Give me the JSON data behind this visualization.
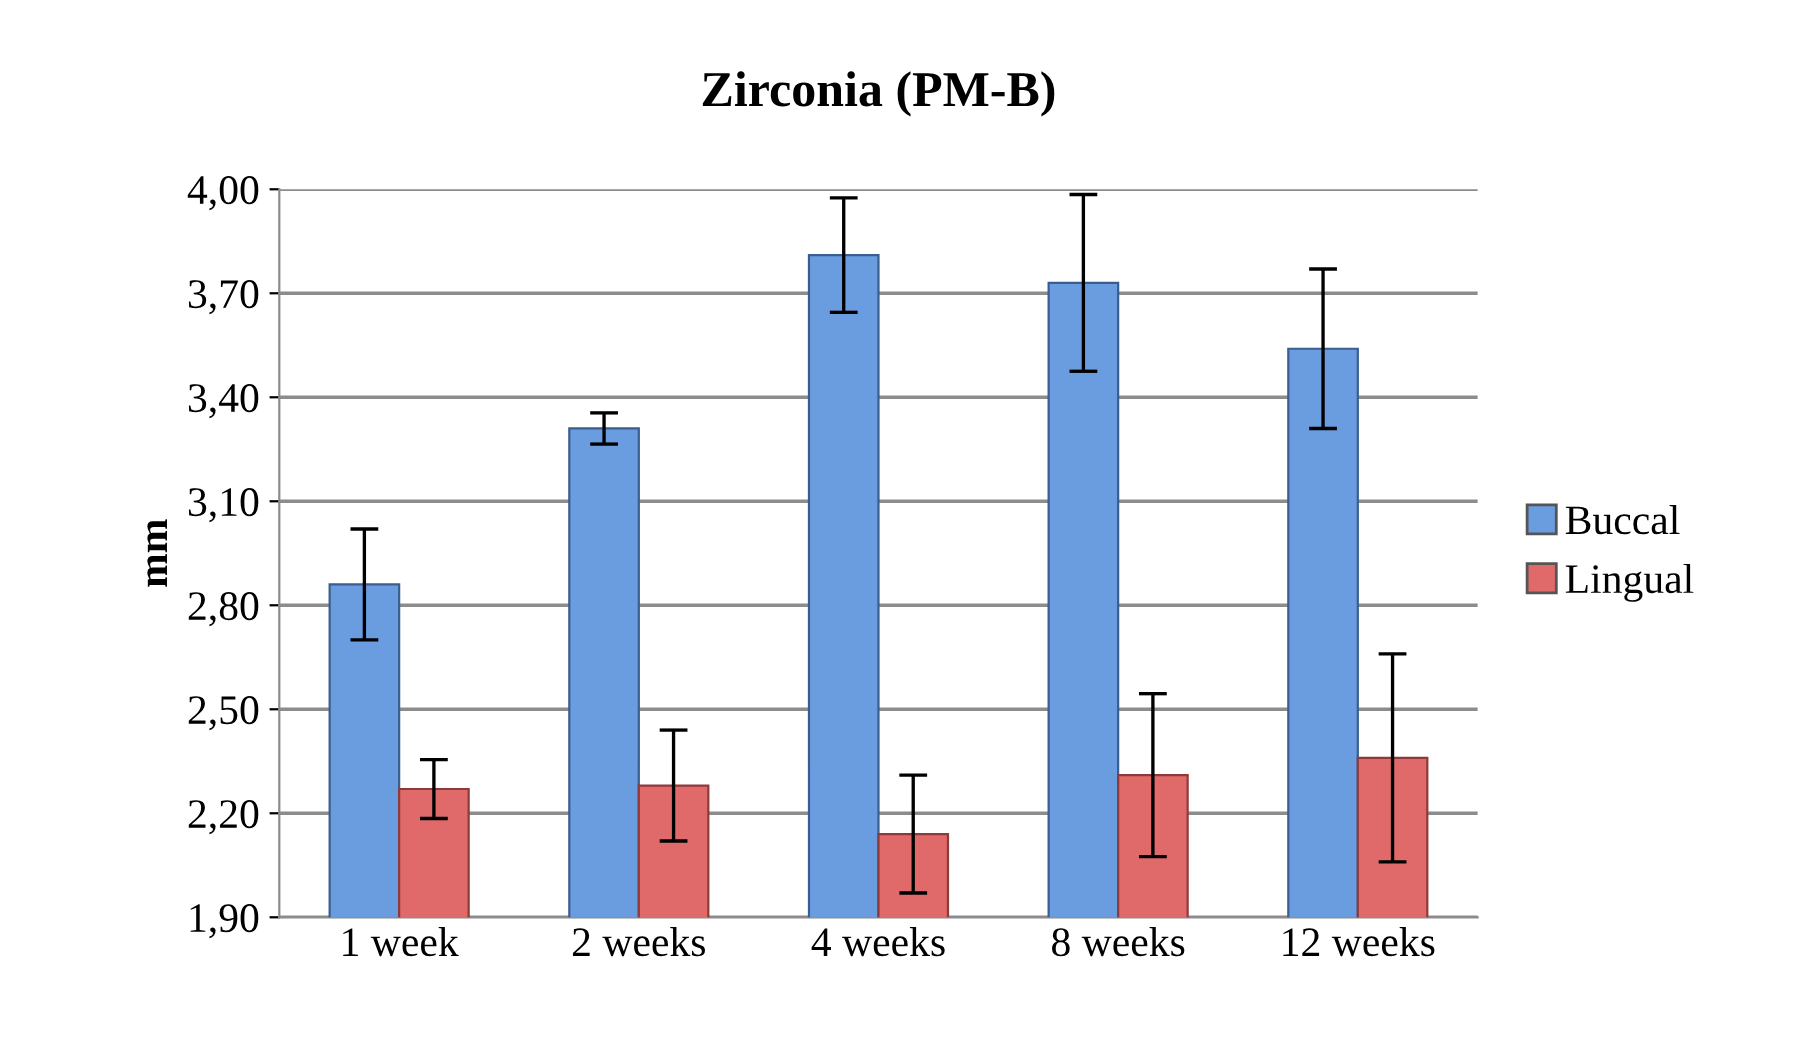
{
  "chart_data": {
    "type": "bar",
    "title": "Zirconia (PM-B)",
    "ylabel": "mm",
    "categories": [
      "1 week",
      "2 weeks",
      "4 weeks",
      "8 weeks",
      "12 weeks"
    ],
    "series": [
      {
        "name": "Buccal",
        "color": "#6a9ce0",
        "values": [
          2.86,
          3.31,
          3.81,
          3.73,
          3.54
        ],
        "errors": [
          0.16,
          0.045,
          0.165,
          0.255,
          0.23
        ]
      },
      {
        "name": "Lingual",
        "color": "#e06a6a",
        "values": [
          2.27,
          2.28,
          2.14,
          2.31,
          2.36
        ],
        "errors": [
          0.085,
          0.16,
          0.17,
          0.235,
          0.3
        ]
      }
    ],
    "ylim": [
      1.9,
      4.0
    ],
    "yticks": [
      {
        "value": 1.9,
        "label": "1,90"
      },
      {
        "value": 2.2,
        "label": "2,20"
      },
      {
        "value": 2.5,
        "label": "2,50"
      },
      {
        "value": 2.8,
        "label": "2,80"
      },
      {
        "value": 3.1,
        "label": "3,10"
      },
      {
        "value": 3.4,
        "label": "3,40"
      },
      {
        "value": 3.7,
        "label": "3,70"
      },
      {
        "value": 4.0,
        "label": "4,00"
      }
    ],
    "grid": "y",
    "legend": "right"
  }
}
